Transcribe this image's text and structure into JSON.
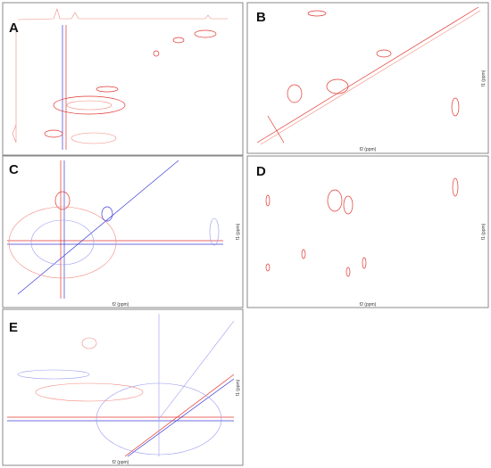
{
  "panels": [
    {
      "label": "A"
    },
    {
      "label": "B",
      "x_label": "f2 (ppm)",
      "y_label": "f1 (ppm)"
    },
    {
      "label": "C",
      "x_label": "f2 (ppm)",
      "y_label": "f1 (ppm)"
    },
    {
      "label": "D",
      "x_label": "f2 (ppm)",
      "y_label": "f1 (ppm)"
    },
    {
      "label": "E",
      "x_label": "f2 (ppm)",
      "y_label": "f1 (ppm)"
    }
  ]
}
